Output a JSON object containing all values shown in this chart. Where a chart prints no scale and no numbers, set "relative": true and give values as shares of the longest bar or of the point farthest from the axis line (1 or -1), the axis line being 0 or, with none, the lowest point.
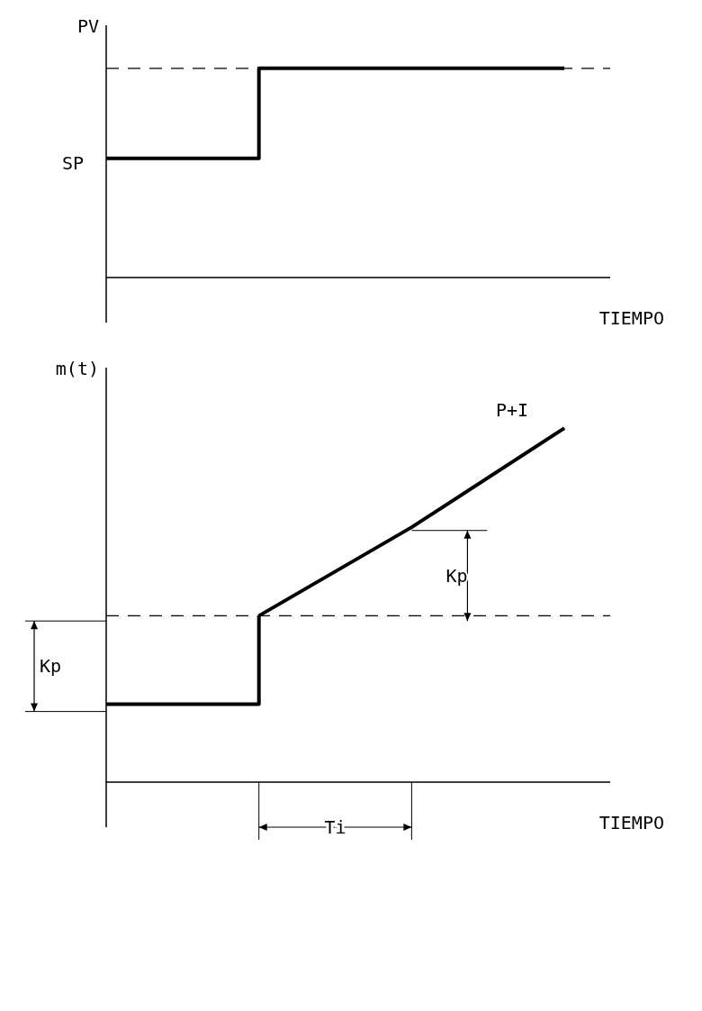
{
  "chart_data": [
    {
      "type": "step",
      "ylabel": "PV",
      "xlabel": "TIEMPO",
      "relative": true,
      "categories": [
        null,
        null,
        null,
        null
      ],
      "series": [
        {
          "color": "#000000",
          "values": [
            0.57,
            1,
            1,
            1
          ]
        }
      ],
      "ref_lines": [
        {
          "axis": "y",
          "value": 1,
          "line_style": "dashed",
          "color": "#000000"
        }
      ],
      "annotations": [
        "SP"
      ],
      "legend": false,
      "grid": false
    },
    {
      "type": "line",
      "ylabel": "m(t)",
      "xlabel": "TIEMPO",
      "relative": true,
      "categories": [
        null,
        null,
        null,
        null
      ],
      "series": [
        {
          "type": "step",
          "color": "#000000",
          "values": [
            0.22,
            0.47,
            null,
            null
          ]
        },
        {
          "name": "P+I",
          "color": "#000000",
          "values": [
            null,
            0.47,
            0.72,
            1
          ]
        }
      ],
      "ref_lines": [
        {
          "axis": "y",
          "value": 0.47,
          "line_style": "dashed",
          "color": "#000000"
        }
      ],
      "annotations": [
        "Kp",
        "Kp",
        "Ti"
      ],
      "legend": false,
      "grid": false
    }
  ]
}
